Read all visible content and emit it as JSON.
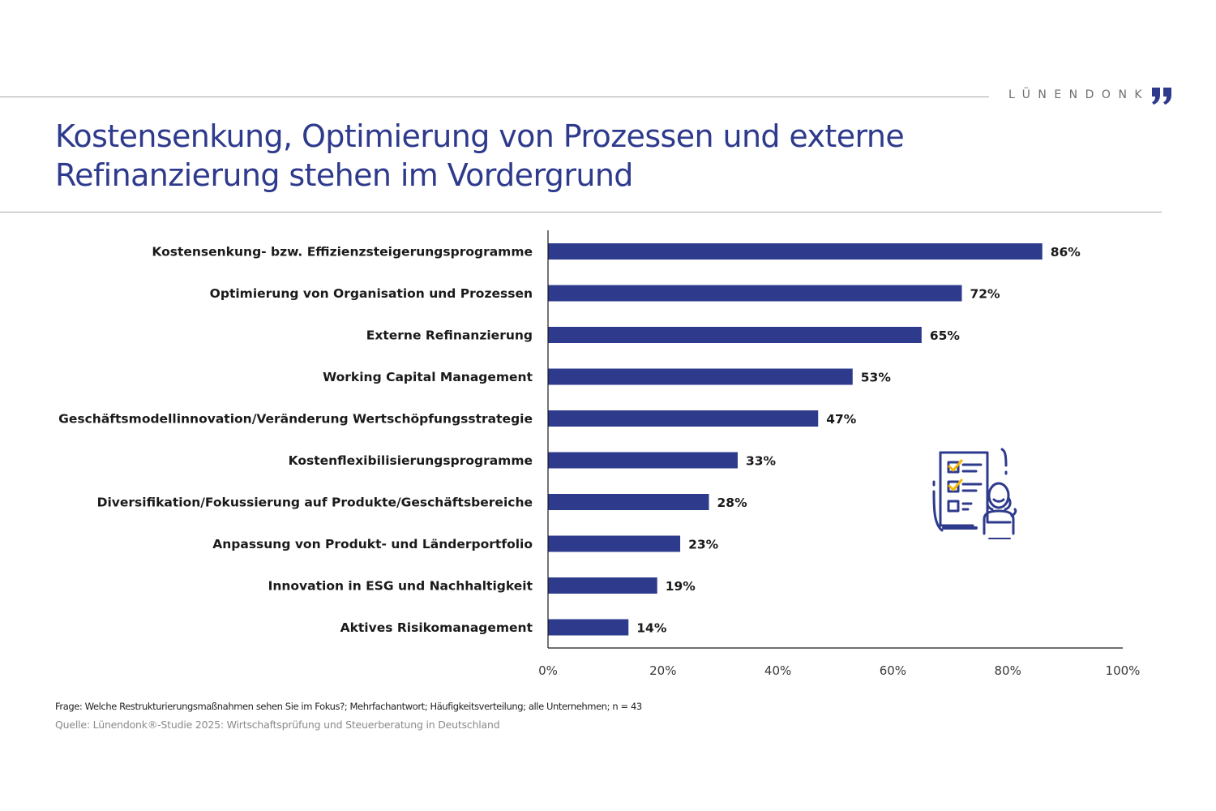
{
  "header": {
    "brand": "LÜNENDONK",
    "brand_icon": "quote-mark-icon",
    "title_line1": "Kostensenkung, Optimierung von Prozessen und externe",
    "title_line2": "Refinanzierung stehen im Vordergrund"
  },
  "colors": {
    "accent": "#2e3a8c",
    "bar": "#2e3a8c",
    "highlight": "#f2b705"
  },
  "chart_data": {
    "type": "bar",
    "orientation": "horizontal",
    "title": "Kostensenkung, Optimierung von Prozessen und externe Refinanzierung stehen im Vordergrund",
    "xlabel": "",
    "ylabel": "",
    "categories": [
      "Kostensenkung- bzw. Effizienzsteigerungsprogramme",
      "Optimierung von Organisation und Prozessen",
      "Externe Refinanzierung",
      "Working Capital Management",
      "Geschäftsmodellinnovation/Veränderung Wertschöpfungsstrategie",
      "Kostenflexibilisierungsprogramme",
      "Diversifikation/Fokussierung auf Produkte/Geschäftsbereiche",
      "Anpassung von Produkt- und Länderportfolio",
      "Innovation in ESG und Nachhaltigkeit",
      "Aktives Risikomanagement"
    ],
    "values": [
      86,
      72,
      65,
      53,
      47,
      33,
      28,
      23,
      19,
      14
    ],
    "value_labels": [
      "86%",
      "72%",
      "65%",
      "53%",
      "47%",
      "33%",
      "28%",
      "23%",
      "19%",
      "14%"
    ],
    "xlim": [
      0,
      100
    ],
    "x_ticks": [
      0,
      20,
      40,
      60,
      80,
      100
    ],
    "x_tick_labels": [
      "0%",
      "20%",
      "40%",
      "60%",
      "80%",
      "100%"
    ],
    "grid": false,
    "legend": "none"
  },
  "illustration": {
    "icon": "checklist-person-icon"
  },
  "footer": {
    "question": "Frage: Welche Restrukturierungsmaßnahmen sehen Sie im Fokus?; Mehrfachantwort; Häufigkeitsverteilung; alle Unternehmen; n = 43",
    "source": "Quelle: Lünendonk®-Studie 2025: Wirtschaftsprüfung und Steuerberatung in Deutschland"
  }
}
